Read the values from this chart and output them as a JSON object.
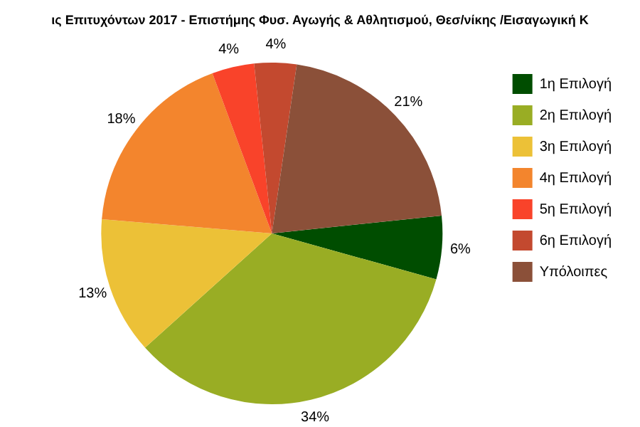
{
  "chart_data": {
    "type": "pie",
    "title": "ις Επιτυχόντων 2017 - Επιστήμης Φυσ. Αγωγής & Αθλητισμού, Θεσ/νίκης /Εισαγωγική Κ",
    "categories": [
      "1η Επιλογή",
      "2η Επιλογή",
      "3η Επιλογή",
      "4η Επιλογή",
      "5η Επιλογή",
      "6η Επιλογή",
      "Υπόλοιπες"
    ],
    "values": [
      6,
      34,
      13,
      18,
      4,
      4,
      21
    ],
    "value_labels": [
      "6%",
      "34%",
      "13%",
      "18%",
      "4%",
      "4%",
      "21%"
    ],
    "colors": [
      "#004d00",
      "#99ad24",
      "#ecc137",
      "#f3852d",
      "#f9432a",
      "#c3492f",
      "#8b5039"
    ],
    "legend": "right"
  }
}
